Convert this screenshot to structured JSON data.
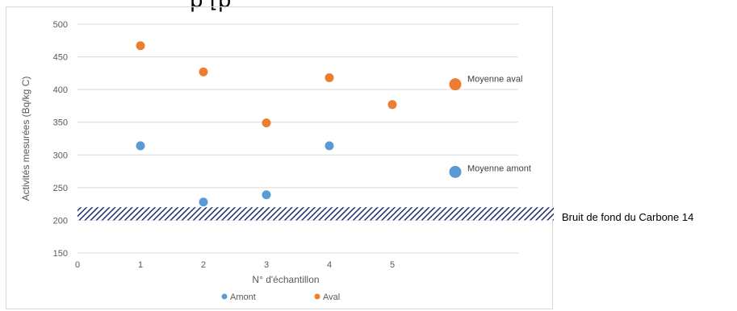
{
  "top_fragment": "p                                                    [p",
  "colors": {
    "amont": "#5b9bd5",
    "aval": "#ed7d31",
    "band": "#1f2d6e",
    "grid": "#d9d9d9"
  },
  "chart_data": {
    "type": "scatter",
    "xlabel": "N° d'échantillon",
    "ylabel": "Activités mesurées (Bq/kg C)",
    "xlim": [
      0,
      7
    ],
    "ylim": [
      150,
      500
    ],
    "x_ticks": [
      "0",
      "1",
      "2",
      "3",
      "4",
      "5"
    ],
    "y_ticks": [
      "150",
      "200",
      "250",
      "300",
      "350",
      "400",
      "450",
      "500"
    ],
    "grid": true,
    "legend_position": "bottom",
    "series": [
      {
        "name": "Amont",
        "color": "#5b9bd5",
        "points": [
          [
            1,
            314
          ],
          [
            2,
            228
          ],
          [
            3,
            239
          ],
          [
            4,
            314
          ]
        ]
      },
      {
        "name": "Aval",
        "color": "#ed7d31",
        "points": [
          [
            1,
            467
          ],
          [
            2,
            427
          ],
          [
            3,
            349
          ],
          [
            4,
            418
          ],
          [
            5,
            377
          ]
        ]
      }
    ],
    "means": [
      {
        "label": "Moyenne aval",
        "x": 6,
        "y": 408,
        "color": "#ed7d31"
      },
      {
        "label": "Moyenne amont",
        "x": 6,
        "y": 274,
        "color": "#5b9bd5"
      }
    ],
    "background_band": {
      "label": "Bruit de fond du Carbone 14",
      "y_range": [
        200,
        220
      ]
    }
  }
}
